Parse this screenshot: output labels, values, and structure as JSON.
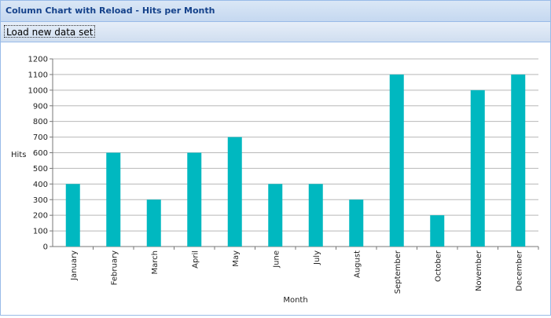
{
  "window": {
    "title": "Column Chart with Reload - Hits per Month"
  },
  "toolbar": {
    "reload_label": "Load new data set"
  },
  "colors": {
    "bar": "#00b8c0",
    "grid": "#b8b8b8",
    "axis": "#777777",
    "title": "#15428b"
  },
  "chart_data": {
    "type": "bar",
    "title": "",
    "xlabel": "Month",
    "ylabel": "Hits",
    "categories": [
      "January",
      "February",
      "March",
      "April",
      "May",
      "June",
      "July",
      "August",
      "September",
      "October",
      "November",
      "December"
    ],
    "values": [
      400,
      600,
      300,
      600,
      700,
      400,
      400,
      300,
      1100,
      200,
      1000,
      1100
    ],
    "ylim": [
      0,
      1200
    ],
    "yticks": [
      0,
      100,
      200,
      300,
      400,
      500,
      600,
      700,
      800,
      900,
      1000,
      1100,
      1200
    ],
    "grid": true
  }
}
